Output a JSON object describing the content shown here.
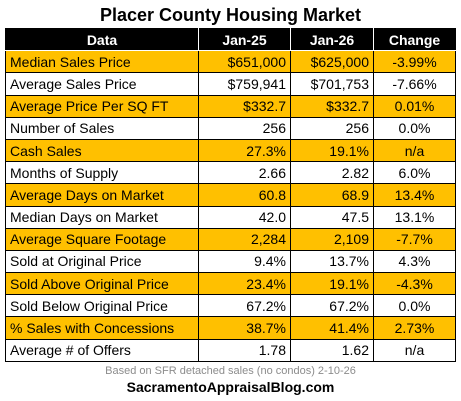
{
  "title": "Placer County Housing Market",
  "chart_data": {
    "type": "table",
    "title": "Placer County Housing Market",
    "columns": [
      "Data",
      "Jan-25",
      "Jan-26",
      "Change"
    ],
    "rows": [
      [
        "Median Sales Price",
        "$651,000",
        "$625,000",
        "-3.99%"
      ],
      [
        "Average Sales Price",
        "$759,941",
        "$701,753",
        "-7.66%"
      ],
      [
        "Average Price Per SQ FT",
        "$332.7",
        "$332.7",
        "0.01%"
      ],
      [
        "Number of Sales",
        "256",
        "256",
        "0.0%"
      ],
      [
        "Cash Sales",
        "27.3%",
        "19.1%",
        "n/a"
      ],
      [
        "Months of Supply",
        "2.66",
        "2.82",
        "6.0%"
      ],
      [
        "Average Days on Market",
        "60.8",
        "68.9",
        "13.4%"
      ],
      [
        "Median Days on Market",
        "42.0",
        "47.5",
        "13.1%"
      ],
      [
        "Average Square Footage",
        "2,284",
        "2,109",
        "-7.7%"
      ],
      [
        "Sold at Original Price",
        "9.4%",
        "13.7%",
        "4.3%"
      ],
      [
        "Sold Above Original Price",
        "23.4%",
        "19.1%",
        "-4.3%"
      ],
      [
        "Sold Below Original Price",
        "67.2%",
        "67.2%",
        "0.0%"
      ],
      [
        "% Sales with Concessions",
        "38.7%",
        "41.4%",
        "2.73%"
      ],
      [
        "Average # of Offers",
        "1.78",
        "1.62",
        "n/a"
      ]
    ],
    "row_highlight": [
      true,
      false,
      true,
      false,
      true,
      false,
      true,
      false,
      true,
      false,
      true,
      false,
      true,
      false
    ],
    "colors": {
      "header_bg": "#000000",
      "header_text": "#ffffff",
      "highlight_row": "#ffc000",
      "plain_row": "#ffffff"
    }
  },
  "footer": {
    "note": "Based on SFR detached sales (no condos) 2-10-26",
    "site": "SacramentoAppraisalBlog.com"
  }
}
